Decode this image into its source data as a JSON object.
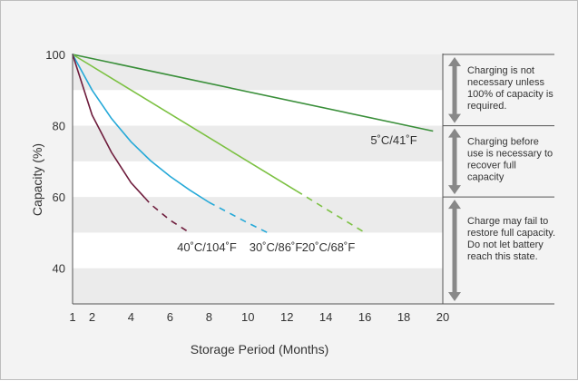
{
  "chart_data": {
    "type": "line",
    "title": "",
    "xlabel": "Storage Period (Months)",
    "ylabel": "Capacity (%)",
    "xlim": [
      1,
      20
    ],
    "ylim": [
      30,
      100
    ],
    "x_ticks": [
      1,
      2,
      4,
      6,
      8,
      10,
      12,
      14,
      16,
      18,
      20
    ],
    "y_ticks": [
      40,
      60,
      80,
      100
    ],
    "grid": "horizontal bands",
    "series": [
      {
        "name": "5˚C/41˚F",
        "color": "#3a8f3a",
        "x": [
          1,
          19.5
        ],
        "y": [
          100,
          78.5
        ],
        "dashed_from": null
      },
      {
        "name": "20˚C/68˚F",
        "color": "#7cc142",
        "x": [
          1,
          16
        ],
        "y": [
          100,
          50
        ],
        "dashed_from": 12.5
      },
      {
        "name": "30˚C/86˚F",
        "color": "#25a9d8",
        "x": [
          1,
          2,
          3,
          4,
          5,
          6,
          7,
          8,
          9,
          10,
          11
        ],
        "y": [
          100,
          90,
          82,
          75.5,
          70.2,
          65.8,
          62,
          58.5,
          55.6,
          52.7,
          50
        ],
        "dashed_from": 8
      },
      {
        "name": "40˚C/104˚F",
        "color": "#6e1c3c",
        "x": [
          1,
          2,
          3,
          4,
          5,
          6,
          7
        ],
        "y": [
          100,
          83,
          72.5,
          64,
          58,
          53.5,
          50
        ],
        "dashed_from": 4.7
      }
    ],
    "zones": [
      {
        "y_top": 100,
        "y_bottom": 80,
        "lines": [
          "Charging is not",
          "necessary unless",
          "100% of capacity is",
          "required."
        ]
      },
      {
        "y_top": 80,
        "y_bottom": 60,
        "lines": [
          "Charging before",
          "use is necessary to",
          "recover full",
          "capacity"
        ]
      },
      {
        "y_top": 60,
        "y_bottom": 30,
        "lines": [
          "Charge may fail to",
          "restore full capacity.",
          "Do not let battery",
          "reach this state."
        ]
      }
    ]
  }
}
